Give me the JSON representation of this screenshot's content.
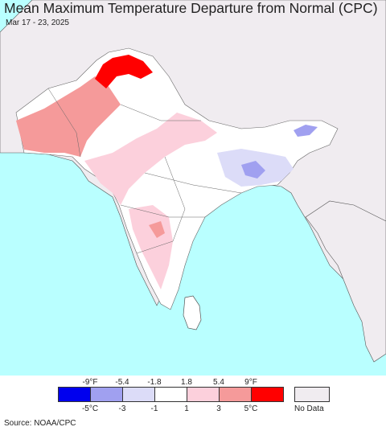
{
  "title": "Mean Maximum Temperature Departure from Normal (CPC)",
  "subtitle": "Mar 17 - 23, 2025",
  "legend": {
    "fahrenheit_ticks": [
      "-9°F",
      "-5.4",
      "-1.8",
      "1.8",
      "5.4",
      "9°F"
    ],
    "celsius_ticks": [
      "-5°C",
      "-3",
      "-1",
      "1",
      "3",
      "5°C"
    ],
    "colors": [
      "#0000ee",
      "#a0a0f0",
      "#dcdcf8",
      "#ffffff",
      "#fcd0dc",
      "#f59a9a",
      "#ff0000"
    ],
    "no_data_color": "#f0ecf0",
    "no_data_label": "No Data"
  },
  "map_colors": {
    "ocean": "#b9ffff",
    "land_no_data": "#f0ecf0"
  },
  "source": "Source: NOAA/CPC"
}
